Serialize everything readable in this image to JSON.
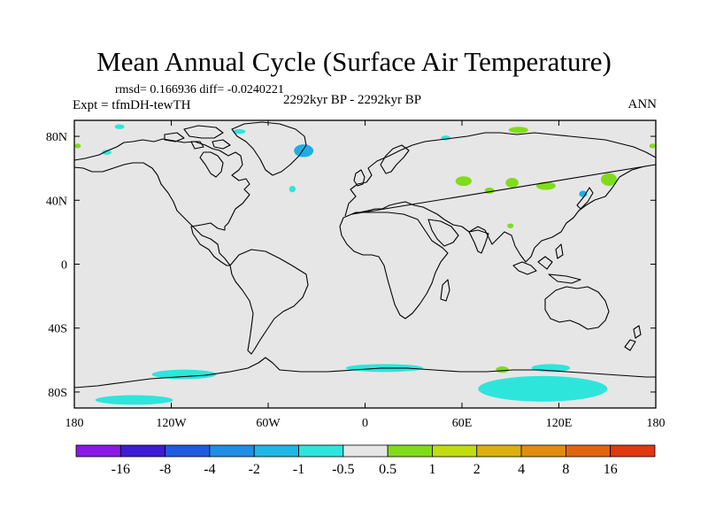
{
  "title": "Mean Annual Cycle (Surface Air Temperature)",
  "stats": "rmsd= 0.166936 diff= -0.0240221",
  "experiment": "Expt = tfmDH-tewTH",
  "period": "2292kyr BP - 2292kyr BP",
  "season": "ANN",
  "colors": {
    "background": "#e6e6e6",
    "frame": "#000000",
    "coast": "#000000",
    "cyan": "#2ee5dc",
    "light_blue": "#1eaee4",
    "green": "#80dc1a"
  },
  "lat_labels": [
    {
      "lat": 80,
      "label": "80N"
    },
    {
      "lat": 40,
      "label": "40N"
    },
    {
      "lat": 0,
      "label": "0"
    },
    {
      "lat": -40,
      "label": "40S"
    },
    {
      "lat": -80,
      "label": "80S"
    }
  ],
  "lon_labels": [
    {
      "lon": -180,
      "label": "180"
    },
    {
      "lon": -120,
      "label": "120W"
    },
    {
      "lon": -60,
      "label": "60W"
    },
    {
      "lon": 0,
      "label": "0"
    },
    {
      "lon": 60,
      "label": "60E"
    },
    {
      "lon": 120,
      "label": "120E"
    },
    {
      "lon": 180,
      "label": "180"
    }
  ],
  "colorbar": {
    "colors": [
      "#8b18e6",
      "#3d1ad4",
      "#1f5be0",
      "#1f8ee4",
      "#1fb6e6",
      "#2ee5dc",
      "#e6e6e6",
      "#80dc1a",
      "#c2dc10",
      "#dcb010",
      "#e08c10",
      "#e06410",
      "#e03810"
    ],
    "labels": [
      "-16",
      "-8",
      "-4",
      "-2",
      "-1",
      "-0.5",
      "0.5",
      "1",
      "2",
      "4",
      "8",
      "16"
    ]
  },
  "anomaly_regions": [
    {
      "name": "Greenland",
      "color": "light_blue",
      "lon": -38,
      "lat": 71,
      "dlon": 6,
      "dlat": 4
    },
    {
      "name": "Arctic Canada",
      "color": "cyan",
      "lon": -78,
      "lat": 83,
      "dlon": 4,
      "dlat": 1.5
    },
    {
      "name": "Arctic Ocean",
      "color": "cyan",
      "lon": -152,
      "lat": 86,
      "dlon": 3,
      "dlat": 1.5
    },
    {
      "name": "Barents Sea",
      "color": "cyan",
      "lon": 50,
      "lat": 79,
      "dlon": 3,
      "dlat": 1.5
    },
    {
      "name": "Canadian Archipelago",
      "color": "cyan",
      "lon": -160,
      "lat": 70,
      "dlon": 3,
      "dlat": 1.5
    },
    {
      "name": "Baffin Bay",
      "color": "cyan",
      "lon": -45,
      "lat": 47,
      "dlon": 2,
      "dlat": 2
    },
    {
      "name": "Kara Sea",
      "color": "green",
      "lon": 95,
      "lat": 84,
      "dlon": 6,
      "dlat": 2
    },
    {
      "name": "Siberia",
      "color": "green",
      "lon": -178,
      "lat": 74,
      "dlon": 2,
      "dlat": 1.5
    },
    {
      "name": "Siberia east",
      "color": "green",
      "lon": 178,
      "lat": 74,
      "dlon": 2,
      "dlat": 1.5
    },
    {
      "name": "Barents Sea north",
      "color": "green",
      "lon": 91,
      "lat": 51,
      "dlon": 4,
      "dlat": 3
    },
    {
      "name": "Caspian region",
      "color": "green",
      "lon": 61,
      "lat": 52,
      "dlon": 5,
      "dlat": 3
    },
    {
      "name": "Ural",
      "color": "green",
      "lon": 77,
      "lat": 46,
      "dlon": 3,
      "dlat": 2
    },
    {
      "name": "Central Asia",
      "color": "green",
      "lon": 112,
      "lat": 49,
      "dlon": 6,
      "dlat": 2.5
    },
    {
      "name": "Tibet",
      "color": "green",
      "lon": 90,
      "lat": 24,
      "dlon": 2,
      "dlat": 1.5
    },
    {
      "name": "Okhotsk",
      "color": "green",
      "lon": 151,
      "lat": 53,
      "dlon": 5,
      "dlat": 4
    },
    {
      "name": "Kamchatka",
      "color": "light_blue",
      "lon": 135,
      "lat": 44,
      "dlon": 2.5,
      "dlat": 2
    },
    {
      "name": "West Antarctica",
      "color": "cyan",
      "lon": -112,
      "lat": -69,
      "dlon": 20,
      "dlat": 3
    },
    {
      "name": "Ross Sea",
      "color": "cyan",
      "lon": -143,
      "lat": -85,
      "dlon": 24,
      "dlat": 3
    },
    {
      "name": "Weddell Sea",
      "color": "cyan",
      "lon": 12,
      "lat": -65,
      "dlon": 24,
      "dlat": 2.5
    },
    {
      "name": "East Antarctica",
      "color": "cyan",
      "lon": 110,
      "lat": -78,
      "dlon": 40,
      "dlat": 8
    },
    {
      "name": "East Antarctica coast",
      "color": "cyan",
      "lon": 115,
      "lat": -65,
      "dlon": 12,
      "dlat": 2.5
    },
    {
      "name": "Indian sector",
      "color": "green",
      "lon": 85,
      "lat": -66,
      "dlon": 4,
      "dlat": 2
    }
  ]
}
